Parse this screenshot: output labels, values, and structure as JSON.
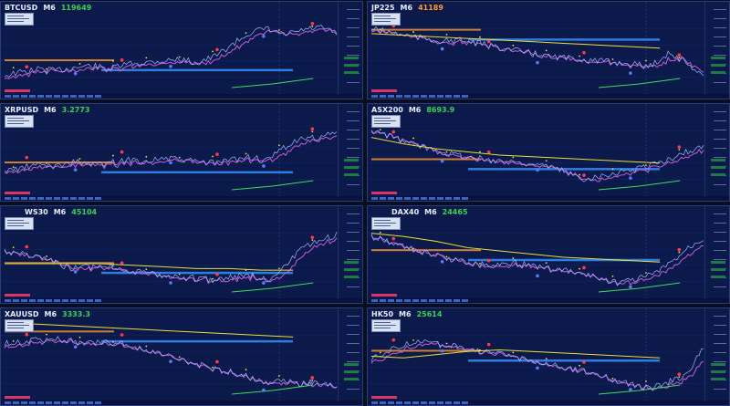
{
  "panels": [
    {
      "symbol": "BTCUSD",
      "timeframe": "M6",
      "price": "119649",
      "price_color": "green"
    },
    {
      "symbol": "JP225",
      "timeframe": "M6",
      "price": "41189",
      "price_color": "orange"
    },
    {
      "symbol": "XRPUSD",
      "timeframe": "M6",
      "price": "3.2773",
      "price_color": "green"
    },
    {
      "symbol": "ASX200",
      "timeframe": "M6",
      "price": "8693.9",
      "price_color": "green"
    },
    {
      "symbol": "WS30",
      "timeframe": "M6",
      "price": "45104",
      "price_color": "green"
    },
    {
      "symbol": "DAX40",
      "timeframe": "M6",
      "price": "24465",
      "price_color": "green"
    },
    {
      "symbol": "XAUUSD",
      "timeframe": "M6",
      "price": "3333.3",
      "price_color": "green"
    },
    {
      "symbol": "HK50",
      "timeframe": "M6",
      "price": "25614",
      "price_color": "green"
    }
  ],
  "colors": {
    "background": "#0b1a4a",
    "price_line": "#9fb6ff",
    "ma_magenta": "#c85bd6",
    "ma_yellow": "#e9e23a",
    "ma_green": "#3cdc5a",
    "level_orange": "#ff9a2e",
    "level_blue": "#2f7de0",
    "marker_red": "#ff3b4a",
    "marker_blue": "#5b7bff",
    "marker_yellow": "#ffd84a"
  }
}
